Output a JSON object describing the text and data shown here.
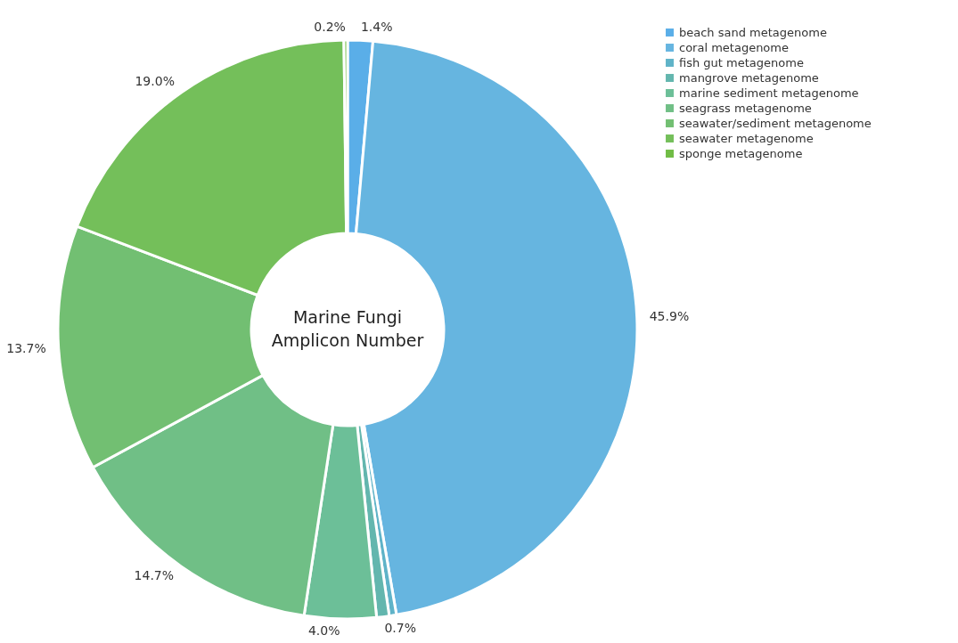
{
  "chart_data": {
    "type": "donut",
    "title": "Marine Fungi Amplicon Number",
    "categories": [
      "beach sand metagenome",
      "coral metagenome",
      "fish gut metagenome",
      "mangrove metagenome",
      "marine sediment metagenome",
      "seagrass metagenome",
      "seawater/sediment metagenome",
      "seawater metagenome",
      "sponge metagenome"
    ],
    "values": [
      1.4,
      45.9,
      0.4,
      0.7,
      4.0,
      14.7,
      13.7,
      19.0,
      0.2
    ],
    "value_labels": [
      "1.4%",
      "45.9%",
      null,
      "0.7%",
      "4.0%",
      "14.7%",
      "13.7%",
      "19.0%",
      "0.2%"
    ],
    "colors": [
      "#5aaee8",
      "#66b5e0",
      "#5fb3c8",
      "#63b6ae",
      "#6cbf98",
      "#70bf86",
      "#72bf72",
      "#74bf5a",
      "#70bc45"
    ],
    "legend": "top right"
  }
}
